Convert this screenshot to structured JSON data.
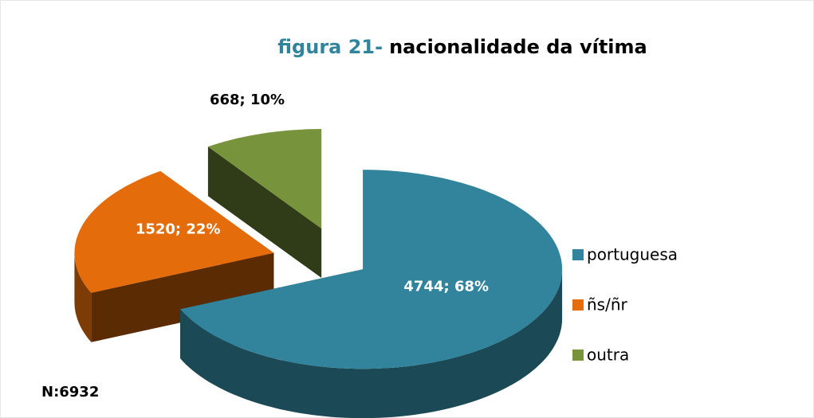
{
  "chart_data": {
    "type": "pie",
    "title_prefix": "figura 21-",
    "title": "nacionalidade da vítima",
    "categories": [
      "portuguesa",
      "ñs/ñr",
      "outra"
    ],
    "values": [
      4744,
      1520,
      668
    ],
    "value_labels": [
      "4744; 68%",
      "1520; 22%",
      "668; 10%"
    ],
    "colors": [
      "#31849b",
      "#e46c0a",
      "#77933c"
    ],
    "annotation": "N:6932",
    "legend": "right"
  }
}
